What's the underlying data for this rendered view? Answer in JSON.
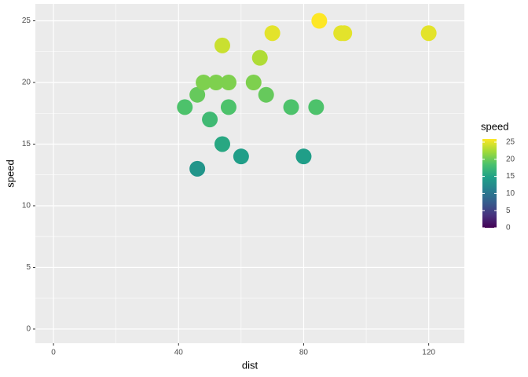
{
  "chart_data": {
    "type": "scatter",
    "x_label": "dist",
    "y_label": "speed",
    "x": [
      46,
      60,
      80,
      54,
      50,
      42,
      56,
      76,
      84,
      46,
      68,
      48,
      52,
      56,
      64,
      66,
      54,
      70,
      92,
      93,
      120,
      85
    ],
    "values": [
      13,
      14,
      14,
      15,
      17,
      18,
      18,
      18,
      18,
      19,
      19,
      20,
      20,
      20,
      20,
      22,
      23,
      24,
      24,
      24,
      24,
      25
    ],
    "xlim": [
      -5.8,
      131.4
    ],
    "ylim": [
      -1.15,
      26.37
    ],
    "xticks": [
      0,
      40,
      80,
      120
    ],
    "yticks": [
      0,
      5,
      10,
      15,
      20,
      25
    ],
    "xminor": [
      20,
      60,
      100
    ],
    "yminor": [
      2.5,
      7.5,
      12.5,
      17.5,
      22.5
    ],
    "grid": true,
    "legend": {
      "title": "speed",
      "lim": [
        0,
        25
      ],
      "ticks": [
        0,
        5,
        10,
        15,
        20,
        25
      ]
    },
    "colormap": [
      "#440154",
      "#46327e",
      "#365c8d",
      "#277f8e",
      "#1fa187",
      "#4ac16d",
      "#a0da39",
      "#fde725"
    ]
  }
}
